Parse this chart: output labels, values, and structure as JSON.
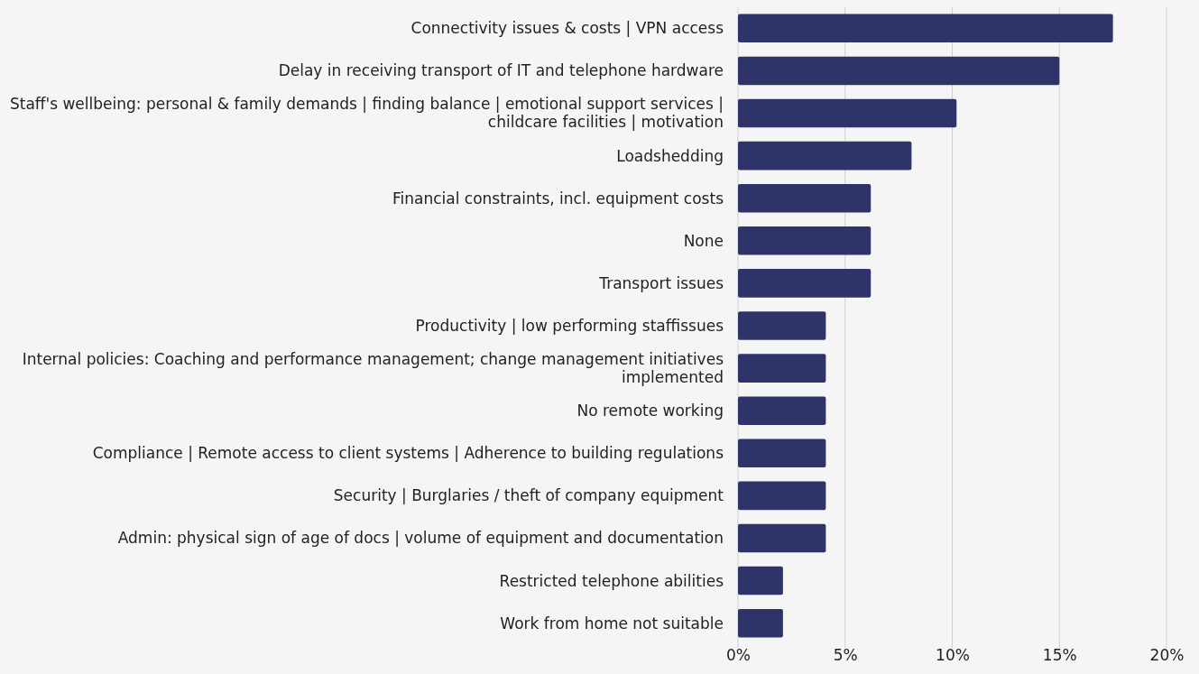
{
  "chart_data": {
    "type": "bar",
    "orientation": "horizontal",
    "categories": [
      "Connectivity issues & costs | VPN access",
      "Delay in receiving transport of IT and telephone hardware",
      "Staff's wellbeing: personal & family demands | finding balance | emotional support services | childcare facilities | motivation",
      "Loadshedding",
      "Financial constraints, incl. equipment costs",
      "None",
      "Transport issues",
      "Productivity | low performing staffissues",
      "Internal policies: Coaching and performance management; change management initiatives implemented",
      "No remote working",
      "Compliance | Remote access to client systems | Adherence to building regulations",
      "Security | Burglaries / theft of company equipment",
      "Admin: physical sign of age of docs | volume of equipment and documentation",
      "Restricted telephone abilities",
      "Work from home not suitable"
    ],
    "values": [
      17.5,
      15.0,
      10.2,
      8.1,
      6.2,
      6.2,
      6.2,
      4.1,
      4.1,
      4.1,
      4.1,
      4.1,
      4.1,
      2.1,
      2.1
    ],
    "color": "#2e3469",
    "xlim": [
      0,
      20
    ],
    "xticks": [
      {
        "value": 0,
        "label": "0%"
      },
      {
        "value": 5,
        "label": "5%"
      },
      {
        "value": 10,
        "label": "10%"
      },
      {
        "value": 15,
        "label": "15%"
      },
      {
        "value": 20,
        "label": "20%"
      }
    ],
    "grid": "x"
  }
}
